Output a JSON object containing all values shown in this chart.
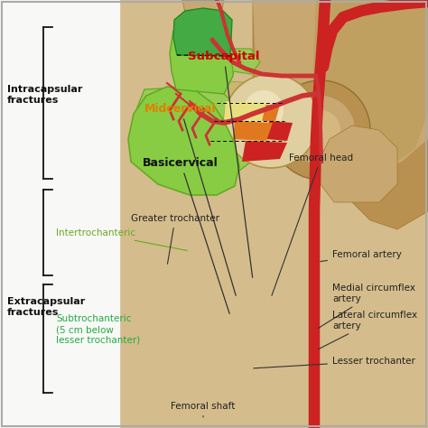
{
  "bg_left": "#f8f8f8",
  "bg_right": "#d4bc8a",
  "border_color": "#aaaaaa",
  "anatomy_colors": {
    "pelvis_bg": "#c8a870",
    "pelvis_bone": "#b89050",
    "acetabulum": "#a07830",
    "femoral_head_fill": "#e0cfa0",
    "femoral_head_highlight": "#f0e8c0",
    "neck_fill": "#c8b870",
    "subcapital_red": "#cc2222",
    "midcervical_orange": "#e07820",
    "basicervical_yellow": "#e8e080",
    "greater_trochanter": "#88cc44",
    "intertrochanteric": "#99cc55",
    "shaft_upper": "#77bb44",
    "shaft_lower": "#44aa44",
    "artery_red": "#cc2222",
    "artery_branch": "#cc3333"
  },
  "labels": {
    "subcapital": {
      "text": "Subcapital",
      "color": "#cc0000",
      "fontsize": 9.5,
      "bold": true
    },
    "midcervical": {
      "text": "Midcervical",
      "color": "#e08000",
      "fontsize": 9,
      "bold": true
    },
    "basicervical": {
      "text": "Basicervical",
      "color": "#000000",
      "fontsize": 9,
      "bold": true
    },
    "femoral_head": {
      "text": "Femoral head",
      "color": "#222222",
      "fontsize": 8,
      "bold": false
    },
    "femoral_artery": {
      "text": "Femoral artery",
      "color": "#222222",
      "fontsize": 8,
      "bold": false
    },
    "greater_trochanter": {
      "text": "Greater trochanter",
      "color": "#222222",
      "fontsize": 8,
      "bold": false
    },
    "intertrochanteric": {
      "text": "Intertrochanteric",
      "color": "#66aa22",
      "fontsize": 8,
      "bold": false
    },
    "medial_circumflex": {
      "text": "Medial circumflex\nartery",
      "color": "#222222",
      "fontsize": 8,
      "bold": false
    },
    "lateral_circumflex": {
      "text": "Lateral circumflex\nartery",
      "color": "#222222",
      "fontsize": 8,
      "bold": false
    },
    "lesser_trochanter": {
      "text": "Lesser trochanter",
      "color": "#222222",
      "fontsize": 8,
      "bold": false
    },
    "subtrochanteric": {
      "text": "Subtrochanteric\n(5 cm below\nlesser trochanter)",
      "color": "#22aa44",
      "fontsize": 8,
      "bold": false
    },
    "femoral_shaft": {
      "text": "Femoral shaft",
      "color": "#222222",
      "fontsize": 8,
      "bold": false
    },
    "intracapsular": {
      "text": "Intracapsular\nfractures",
      "color": "#111111",
      "fontsize": 8.5,
      "bold": true
    },
    "extracapsular": {
      "text": "Extracapsular\nfractures",
      "color": "#111111",
      "fontsize": 8.5,
      "bold": true
    }
  }
}
